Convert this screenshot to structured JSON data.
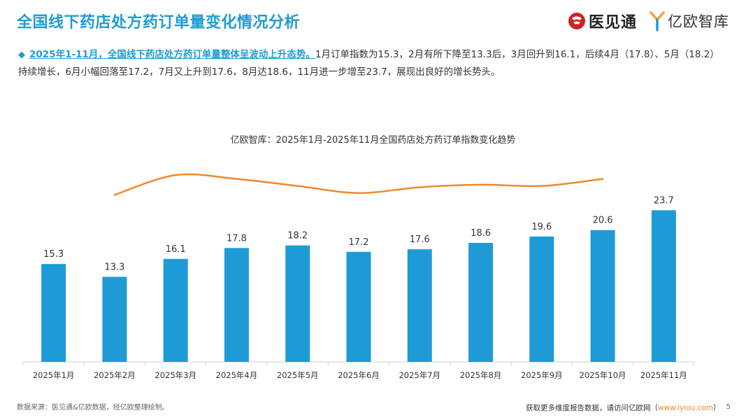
{
  "header": {
    "title": "全国线下药店处方药订单量变化情况分析",
    "logo1_text": "医见通",
    "logo2_text": "亿欧智库"
  },
  "summary": {
    "highlight": "2025年1-11月，全国线下药店处方药订单量整体呈波动上升态势。",
    "body": "1月订单指数为15.3，2月有所下降至13.3后，3月回升到16.1，后续4月（17.8）、5月（18.2）持续增长，6月小幅回落至17.2，7月又上升到17.6，8月达18.6，11月进一步增至23.7，展现出良好的增长势头。"
  },
  "chart_data": {
    "type": "bar",
    "title": "亿欧智库：2025年1月-2025年11月全国药店处方药订单指数变化趋势",
    "categories": [
      "2025年1月",
      "2025年2月",
      "2025年3月",
      "2025年4月",
      "2025年5月",
      "2025年6月",
      "2025年7月",
      "2025年8月",
      "2025年9月",
      "2025年10月",
      "2025年11月"
    ],
    "values": [
      15.3,
      13.3,
      16.1,
      17.8,
      18.2,
      17.2,
      17.6,
      18.6,
      19.6,
      20.6,
      23.7
    ],
    "value_labels": [
      "15.3",
      "13.3",
      "16.1",
      "17.8",
      "18.2",
      "17.2",
      "17.6",
      "18.6",
      "19.6",
      "20.6",
      "23.7"
    ],
    "ylim": [
      0,
      28
    ],
    "bar_color": "#1e9bd7",
    "trend_line": {
      "color": "#f0882a",
      "description": "decorative smoothed trend line from 2025年2月 to 2025年10月",
      "x": [
        "2025年2月",
        "2025年3月",
        "2025年4月",
        "2025年5月",
        "2025年6月",
        "2025年7月",
        "2025年8月",
        "2025年9月",
        "2025年10月"
      ],
      "y": [
        26.1,
        29.2,
        28.6,
        27.5,
        26.4,
        27.3,
        27.7,
        27.5,
        28.6
      ]
    },
    "xlabel": "",
    "ylabel": ""
  },
  "footer": {
    "source": "数据来源：医见通&亿欧数据，经亿欧整理绘制。",
    "cta_prefix": "获取更多维度报告数据，请访问亿欧网（",
    "cta_link": "www.iyiou.com",
    "cta_suffix": "）",
    "page_number": "5"
  }
}
